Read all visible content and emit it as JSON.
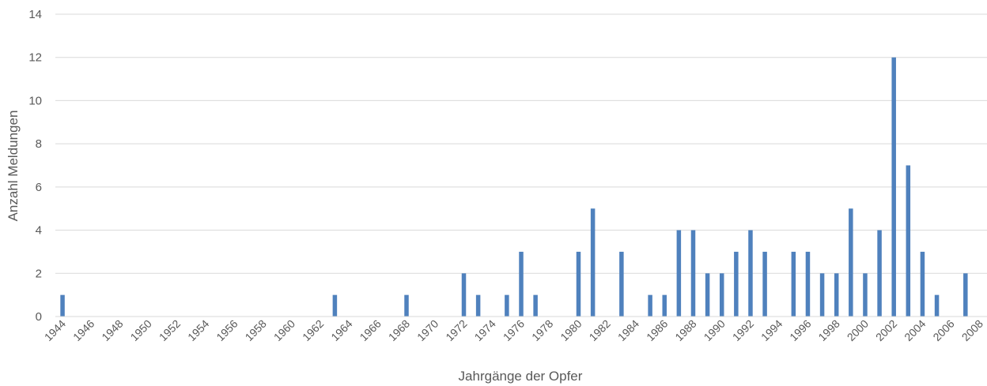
{
  "chart_data": {
    "type": "bar",
    "xlabel": "Jahrgänge der Opfer",
    "ylabel": "Anzahl Meldungen",
    "ylim": [
      0,
      14
    ],
    "yticks": [
      "0",
      "2",
      "4",
      "6",
      "8",
      "10",
      "12",
      "14"
    ],
    "grid": true,
    "bar_color": "#4f81bd",
    "categories": [
      "1944",
      "1945",
      "1946",
      "1947",
      "1948",
      "1949",
      "1950",
      "1951",
      "1952",
      "1953",
      "1954",
      "1955",
      "1956",
      "1957",
      "1958",
      "1959",
      "1960",
      "1961",
      "1962",
      "1963",
      "1964",
      "1965",
      "1966",
      "1967",
      "1968",
      "1969",
      "1970",
      "1971",
      "1972",
      "1973",
      "1974",
      "1975",
      "1976",
      "1977",
      "1978",
      "1979",
      "1980",
      "1981",
      "1982",
      "1983",
      "1984",
      "1985",
      "1986",
      "1987",
      "1988",
      "1989",
      "1990",
      "1991",
      "1992",
      "1993",
      "1994",
      "1995",
      "1996",
      "1997",
      "1998",
      "1999",
      "2000",
      "2001",
      "2002",
      "2003",
      "2004",
      "2005",
      "2006",
      "2007",
      "2008"
    ],
    "tick_labels": [
      "1944",
      "1946",
      "1948",
      "1950",
      "1952",
      "1954",
      "1956",
      "1958",
      "1960",
      "1962",
      "1964",
      "1966",
      "1968",
      "1970",
      "1972",
      "1974",
      "1976",
      "1978",
      "1980",
      "1982",
      "1984",
      "1986",
      "1988",
      "1990",
      "1992",
      "1994",
      "1996",
      "1998",
      "2000",
      "2002",
      "2004",
      "2006",
      "2008"
    ],
    "values": [
      1,
      0,
      0,
      0,
      0,
      0,
      0,
      0,
      0,
      0,
      0,
      0,
      0,
      0,
      0,
      0,
      0,
      0,
      0,
      1,
      0,
      0,
      0,
      0,
      1,
      0,
      0,
      0,
      2,
      1,
      0,
      1,
      3,
      1,
      0,
      0,
      3,
      5,
      0,
      3,
      0,
      1,
      1,
      4,
      4,
      2,
      2,
      3,
      4,
      3,
      0,
      3,
      3,
      2,
      2,
      5,
      2,
      4,
      12,
      7,
      3,
      1,
      0,
      2,
      0
    ]
  }
}
